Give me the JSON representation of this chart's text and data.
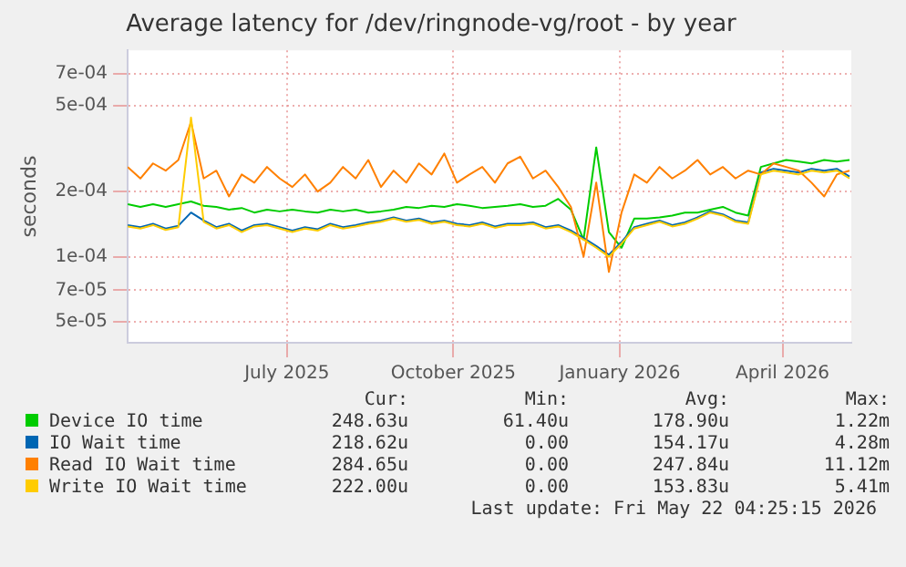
{
  "chart_data": {
    "type": "line",
    "title": "Average latency for /dev/ringnode-vg/root - by year",
    "ylabel": "seconds",
    "log": "y",
    "x": [
      "2025-04-19",
      "2025-04-26",
      "2025-05-03",
      "2025-05-10",
      "2025-05-17",
      "2025-05-24",
      "2025-05-31",
      "2025-06-07",
      "2025-06-14",
      "2025-06-21",
      "2025-06-28",
      "2025-07-05",
      "2025-07-12",
      "2025-07-19",
      "2025-07-26",
      "2025-08-02",
      "2025-08-09",
      "2025-08-16",
      "2025-08-23",
      "2025-08-30",
      "2025-09-06",
      "2025-09-13",
      "2025-09-20",
      "2025-09-27",
      "2025-10-04",
      "2025-10-11",
      "2025-10-18",
      "2025-10-25",
      "2025-11-01",
      "2025-11-08",
      "2025-11-15",
      "2025-11-22",
      "2025-11-29",
      "2025-12-06",
      "2025-12-13",
      "2025-12-20",
      "2025-12-27",
      "2026-01-03",
      "2026-01-10",
      "2026-01-17",
      "2026-01-24",
      "2026-01-31",
      "2026-02-07",
      "2026-02-14",
      "2026-02-21",
      "2026-02-28",
      "2026-03-07",
      "2026-03-14",
      "2026-03-21",
      "2026-03-28",
      "2026-04-04",
      "2026-04-11",
      "2026-04-18",
      "2026-04-25",
      "2026-05-02",
      "2026-05-09",
      "2026-05-16",
      "2026-05-23"
    ],
    "series": [
      {
        "name": "Device IO time",
        "color": "#00cc00",
        "values": [
          0.000175,
          0.00017,
          0.000175,
          0.00017,
          0.000175,
          0.00018,
          0.000172,
          0.00017,
          0.000165,
          0.000168,
          0.00016,
          0.000165,
          0.000162,
          0.000165,
          0.000162,
          0.00016,
          0.000165,
          0.000162,
          0.000165,
          0.00016,
          0.000162,
          0.000165,
          0.00017,
          0.000168,
          0.000172,
          0.00017,
          0.000175,
          0.000172,
          0.000168,
          0.00017,
          0.000172,
          0.000175,
          0.00017,
          0.000172,
          0.000185,
          0.000165,
          0.00012,
          0.00032,
          0.00013,
          0.00011,
          0.00015,
          0.00015,
          0.000152,
          0.000155,
          0.00016,
          0.00016,
          0.000165,
          0.00017,
          0.00016,
          0.000155,
          0.00026,
          0.00027,
          0.00028,
          0.000275,
          0.00027,
          0.00028,
          0.000275,
          0.00028
        ]
      },
      {
        "name": "IO Wait time",
        "color": "#0066b3",
        "values": [
          0.00014,
          0.000137,
          0.000142,
          0.000135,
          0.000139,
          0.00016,
          0.000147,
          0.000137,
          0.000142,
          0.000132,
          0.00014,
          0.000142,
          0.000137,
          0.000132,
          0.000137,
          0.000134,
          0.000142,
          0.000137,
          0.00014,
          0.000144,
          0.000147,
          0.000152,
          0.000147,
          0.00015,
          0.000144,
          0.000147,
          0.000142,
          0.00014,
          0.000144,
          0.000138,
          0.000142,
          0.000142,
          0.000144,
          0.000137,
          0.00014,
          0.000132,
          0.000122,
          0.000112,
          0.000102,
          0.000117,
          0.000137,
          0.000142,
          0.000147,
          0.00014,
          0.000144,
          0.000152,
          0.000162,
          0.000157,
          0.000147,
          0.000144,
          0.000245,
          0.000255,
          0.00025,
          0.000245,
          0.000255,
          0.00025,
          0.000255,
          0.000235
        ]
      },
      {
        "name": "Read IO Wait time",
        "color": "#ff8000",
        "values": [
          0.00026,
          0.00023,
          0.00027,
          0.00025,
          0.00028,
          0.00042,
          0.00023,
          0.00025,
          0.00019,
          0.00024,
          0.00022,
          0.00026,
          0.00023,
          0.00021,
          0.00024,
          0.0002,
          0.00022,
          0.00026,
          0.00023,
          0.00028,
          0.00021,
          0.00025,
          0.00022,
          0.00027,
          0.00024,
          0.0003,
          0.00022,
          0.00024,
          0.00026,
          0.00022,
          0.00027,
          0.00029,
          0.00023,
          0.00025,
          0.00021,
          0.00017,
          0.0001,
          0.00022,
          8.5e-05,
          0.00016,
          0.00024,
          0.00022,
          0.00026,
          0.00023,
          0.00025,
          0.00028,
          0.00024,
          0.00026,
          0.00023,
          0.00025,
          0.00024,
          0.00027,
          0.00026,
          0.00025,
          0.00022,
          0.00019,
          0.00024,
          0.00025
        ]
      },
      {
        "name": "Write IO Wait time",
        "color": "#ffcc00",
        "values": [
          0.000138,
          0.000135,
          0.00014,
          0.000133,
          0.000137,
          0.00044,
          0.000145,
          0.000135,
          0.00014,
          0.00013,
          0.000138,
          0.00014,
          0.000135,
          0.00013,
          0.000135,
          0.000132,
          0.00014,
          0.000135,
          0.000138,
          0.000142,
          0.000145,
          0.00015,
          0.000145,
          0.000148,
          0.000142,
          0.000145,
          0.00014,
          0.000138,
          0.000142,
          0.000136,
          0.00014,
          0.00014,
          0.000142,
          0.000135,
          0.000138,
          0.00013,
          0.00012,
          0.00011,
          0.0001,
          0.000115,
          0.000135,
          0.00014,
          0.000145,
          0.000138,
          0.000142,
          0.00015,
          0.00016,
          0.000155,
          0.000145,
          0.000142,
          0.00024,
          0.00025,
          0.000245,
          0.00024,
          0.00025,
          0.000245,
          0.00025,
          0.00023
        ]
      }
    ],
    "xlim": [
      "2025-04-19",
      "2026-05-24"
    ],
    "xticks": [
      {
        "value": "2025-07-16",
        "label": "July 2025"
      },
      {
        "value": "2025-10-16",
        "label": "October 2025"
      },
      {
        "value": "2026-01-16",
        "label": "January 2026"
      },
      {
        "value": "2026-04-16",
        "label": "April 2026"
      }
    ],
    "ylim": [
      4e-05,
      0.0009
    ],
    "yticks": [
      {
        "value": 5e-05,
        "label": "5e-05"
      },
      {
        "value": 7e-05,
        "label": "7e-05"
      },
      {
        "value": 0.0001,
        "label": "1e-04"
      },
      {
        "value": 0.0002,
        "label": "2e-04"
      },
      {
        "value": 0.0005,
        "label": "5e-04"
      },
      {
        "value": 0.0007,
        "label": "7e-04"
      }
    ],
    "grid": true,
    "legend": "bottom",
    "marker": "none",
    "line_style": "solid",
    "annotations": [
      "Cur:",
      "Min:",
      "Avg:",
      "Max:",
      "248.63u",
      "61.40u",
      "178.90u",
      "1.22m",
      "218.62u",
      "0.00",
      "154.17u",
      "4.28m",
      "284.65u",
      "0.00",
      "247.84u",
      "11.12m",
      "222.00u",
      "0.00",
      "153.83u",
      "5.41m",
      "Last update: Fri May 22 04:25:15 2026"
    ]
  }
}
